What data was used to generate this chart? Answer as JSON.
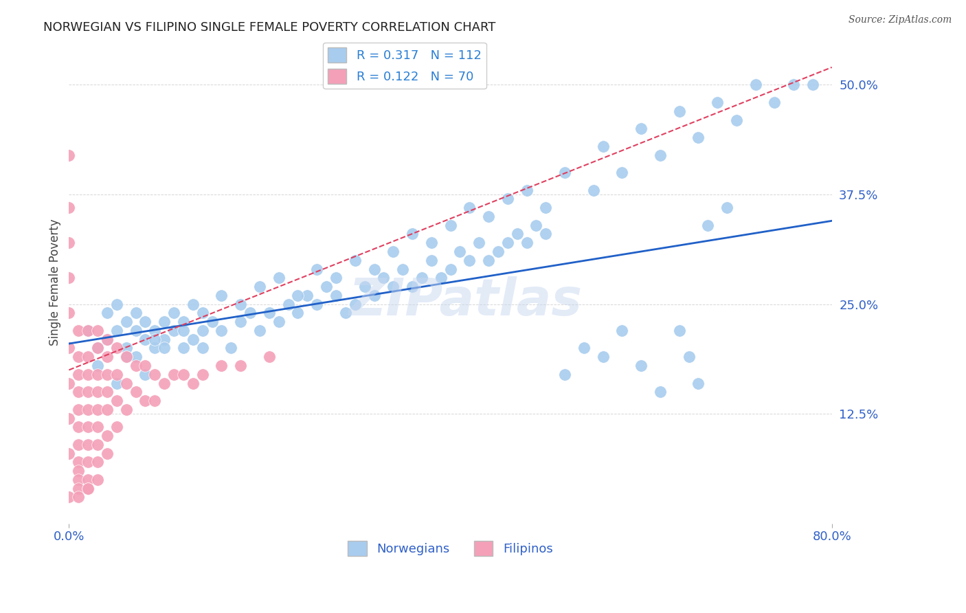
{
  "title": "NORWEGIAN VS FILIPINO SINGLE FEMALE POVERTY CORRELATION CHART",
  "source": "Source: ZipAtlas.com",
  "ylabel": "Single Female Poverty",
  "watermark": "ZIPatlas",
  "xlim": [
    0.0,
    0.8
  ],
  "ylim": [
    0.0,
    0.55
  ],
  "ytick_positions": [
    0.0,
    0.125,
    0.25,
    0.375,
    0.5
  ],
  "ytick_labels": [
    "",
    "12.5%",
    "25.0%",
    "37.5%",
    "50.0%"
  ],
  "norwegian_R": 0.317,
  "norwegian_N": 112,
  "filipino_R": 0.122,
  "filipino_N": 70,
  "norwegian_color": "#A8CCEE",
  "filipino_color": "#F4A0B8",
  "norwegian_line_color": "#2060C8",
  "filipino_line_color": "#E04060",
  "axis_label_color": "#3060C8",
  "title_color": "#222222",
  "legend_text_color": "#2B7FD4",
  "norwegian_x": [
    0.02,
    0.03,
    0.04,
    0.04,
    0.05,
    0.05,
    0.06,
    0.06,
    0.07,
    0.07,
    0.07,
    0.08,
    0.08,
    0.09,
    0.09,
    0.1,
    0.1,
    0.11,
    0.11,
    0.12,
    0.12,
    0.13,
    0.13,
    0.14,
    0.14,
    0.15,
    0.16,
    0.17,
    0.18,
    0.19,
    0.2,
    0.21,
    0.22,
    0.23,
    0.24,
    0.25,
    0.26,
    0.27,
    0.28,
    0.29,
    0.3,
    0.31,
    0.32,
    0.33,
    0.34,
    0.35,
    0.36,
    0.37,
    0.38,
    0.39,
    0.4,
    0.41,
    0.42,
    0.43,
    0.44,
    0.45,
    0.46,
    0.47,
    0.48,
    0.49,
    0.5,
    0.52,
    0.54,
    0.56,
    0.58,
    0.6,
    0.62,
    0.64,
    0.65,
    0.66,
    0.03,
    0.05,
    0.06,
    0.08,
    0.09,
    0.1,
    0.12,
    0.14,
    0.16,
    0.18,
    0.2,
    0.22,
    0.24,
    0.26,
    0.28,
    0.3,
    0.32,
    0.34,
    0.36,
    0.38,
    0.4,
    0.42,
    0.44,
    0.46,
    0.5,
    0.55,
    0.58,
    0.62,
    0.66,
    0.7,
    0.48,
    0.52,
    0.56,
    0.6,
    0.64,
    0.68,
    0.72,
    0.74,
    0.76,
    0.78,
    0.67,
    0.69
  ],
  "norwegian_y": [
    0.22,
    0.2,
    0.21,
    0.24,
    0.22,
    0.25,
    0.23,
    0.2,
    0.22,
    0.19,
    0.24,
    0.21,
    0.23,
    0.22,
    0.2,
    0.21,
    0.23,
    0.22,
    0.24,
    0.2,
    0.23,
    0.21,
    0.25,
    0.22,
    0.2,
    0.23,
    0.22,
    0.2,
    0.23,
    0.24,
    0.22,
    0.24,
    0.23,
    0.25,
    0.24,
    0.26,
    0.25,
    0.27,
    0.26,
    0.24,
    0.25,
    0.27,
    0.26,
    0.28,
    0.27,
    0.29,
    0.27,
    0.28,
    0.3,
    0.28,
    0.29,
    0.31,
    0.3,
    0.32,
    0.3,
    0.31,
    0.32,
    0.33,
    0.32,
    0.34,
    0.33,
    0.17,
    0.2,
    0.19,
    0.22,
    0.18,
    0.15,
    0.22,
    0.19,
    0.16,
    0.18,
    0.16,
    0.19,
    0.17,
    0.21,
    0.2,
    0.22,
    0.24,
    0.26,
    0.25,
    0.27,
    0.28,
    0.26,
    0.29,
    0.28,
    0.3,
    0.29,
    0.31,
    0.33,
    0.32,
    0.34,
    0.36,
    0.35,
    0.37,
    0.36,
    0.38,
    0.4,
    0.42,
    0.44,
    0.46,
    0.38,
    0.4,
    0.43,
    0.45,
    0.47,
    0.48,
    0.5,
    0.48,
    0.5,
    0.5,
    0.34,
    0.36
  ],
  "filipino_x": [
    0.0,
    0.0,
    0.0,
    0.0,
    0.0,
    0.0,
    0.0,
    0.0,
    0.0,
    0.01,
    0.01,
    0.01,
    0.01,
    0.01,
    0.01,
    0.01,
    0.01,
    0.01,
    0.01,
    0.01,
    0.02,
    0.02,
    0.02,
    0.02,
    0.02,
    0.02,
    0.02,
    0.02,
    0.02,
    0.02,
    0.03,
    0.03,
    0.03,
    0.03,
    0.03,
    0.03,
    0.03,
    0.03,
    0.03,
    0.04,
    0.04,
    0.04,
    0.04,
    0.04,
    0.04,
    0.04,
    0.05,
    0.05,
    0.05,
    0.05,
    0.06,
    0.06,
    0.06,
    0.07,
    0.07,
    0.08,
    0.08,
    0.09,
    0.09,
    0.1,
    0.11,
    0.12,
    0.13,
    0.14,
    0.16,
    0.18,
    0.21,
    0.0,
    0.01,
    0.02
  ],
  "filipino_y": [
    0.42,
    0.36,
    0.32,
    0.28,
    0.24,
    0.2,
    0.16,
    0.12,
    0.08,
    0.22,
    0.19,
    0.17,
    0.15,
    0.13,
    0.11,
    0.09,
    0.07,
    0.06,
    0.05,
    0.04,
    0.22,
    0.19,
    0.17,
    0.15,
    0.13,
    0.11,
    0.09,
    0.07,
    0.05,
    0.04,
    0.22,
    0.2,
    0.17,
    0.15,
    0.13,
    0.11,
    0.09,
    0.07,
    0.05,
    0.21,
    0.19,
    0.17,
    0.15,
    0.13,
    0.1,
    0.08,
    0.2,
    0.17,
    0.14,
    0.11,
    0.19,
    0.16,
    0.13,
    0.18,
    0.15,
    0.18,
    0.14,
    0.17,
    0.14,
    0.16,
    0.17,
    0.17,
    0.16,
    0.17,
    0.18,
    0.18,
    0.19,
    0.03,
    0.03,
    0.04
  ]
}
